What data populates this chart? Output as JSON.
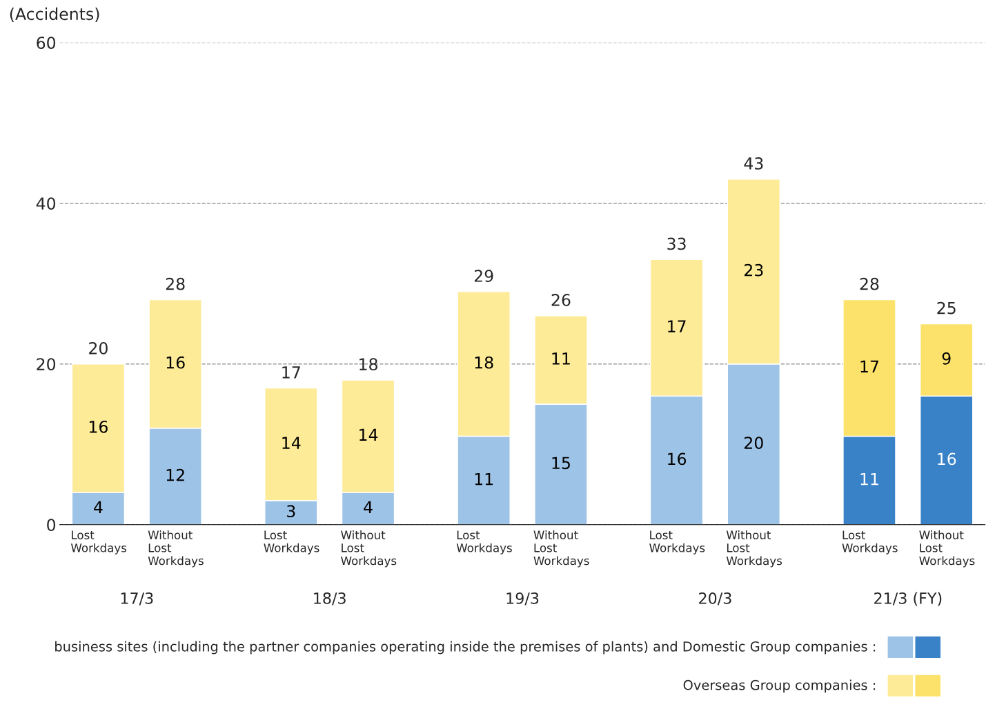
{
  "chart_data": {
    "type": "bar",
    "stacked": true,
    "ylabel": "(Accidents)",
    "categories": [
      "Lost\nWorkdays",
      "Without\nLost\nWorkdays",
      "Lost\nWorkdays",
      "Without\nLost\nWorkdays",
      "Lost\nWorkdays",
      "Without\nLost\nWorkdays",
      "Lost\nWorkdays",
      "Without\nLost\nWorkdays",
      "Lost\nWorkdays",
      "Without\nLost\nWorkdays"
    ],
    "series": [
      {
        "name": "business sites (including the partner companies operating inside the premises of plants) and Domestic Group companies :",
        "colors": [
          "#9dc3e6",
          "#9dc3e6",
          "#9dc3e6",
          "#9dc3e6",
          "#9dc3e6",
          "#9dc3e6",
          "#9dc3e6",
          "#9dc3e6",
          "#3a82c8",
          "#3a82c8"
        ],
        "values": [
          4,
          12,
          3,
          4,
          11,
          15,
          16,
          20,
          11,
          16
        ]
      },
      {
        "name": "Overseas Group companies :",
        "colors": [
          "#fdeb98",
          "#fdeb98",
          "#fdeb98",
          "#fdeb98",
          "#fdeb98",
          "#fdeb98",
          "#fdeb98",
          "#fdeb98",
          "#fce26a",
          "#fce26a"
        ],
        "values": [
          16,
          16,
          14,
          14,
          18,
          11,
          17,
          23,
          17,
          9
        ]
      }
    ],
    "totals": [
      "20",
      "28",
      "17",
      "18",
      "29",
      "26",
      "33",
      "43",
      "28",
      "25"
    ],
    "annotations": [
      "17/3",
      "18/3",
      "19/3",
      "20/3",
      "21/3 (FY)"
    ],
    "data_labels": true,
    "ylim": [
      0,
      60
    ],
    "yticks": [
      0,
      20,
      40,
      60
    ],
    "grid": "y",
    "legend": "bottom"
  }
}
